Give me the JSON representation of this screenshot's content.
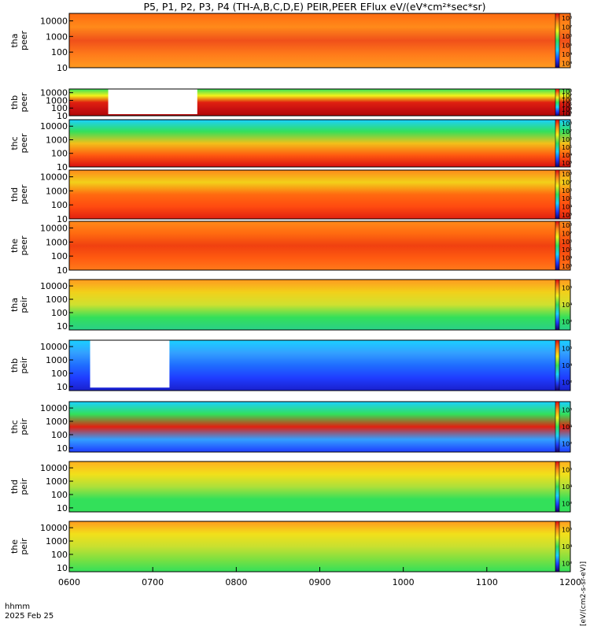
{
  "title": "P5, P1, P2, P3, P4 (TH-A,B,C,D,E) PEIR,PEER EFlux eV/(eV*cm²*sec*sr)",
  "colorbar_units": "[eV/(cm2-s-sr-eV)]",
  "time_label": "hhmm",
  "date_label": "2025 Feb 25",
  "x_ticks": [
    "0600",
    "0700",
    "0800",
    "0900",
    "1000",
    "1100",
    "1200"
  ],
  "chart_data": [
    {
      "type": "heatmap",
      "probe": "tha",
      "species": "peer",
      "ylabel": [
        "tha",
        "peer"
      ],
      "yticks": [
        "10",
        "100",
        "1000",
        "10000"
      ],
      "cbar_ticks": [
        "10³",
        "10⁴",
        "10⁵",
        "10⁶",
        "10⁷",
        "10⁸"
      ],
      "xlim": [
        "0600",
        "1200"
      ],
      "ylim": [
        10,
        30000
      ],
      "yscale": "log",
      "cscale": "log"
    },
    {
      "type": "heatmap",
      "probe": "thb",
      "species": "peer",
      "ylabel": [
        "thb",
        "peer"
      ],
      "yticks": [
        "10",
        "100",
        "1000",
        "10000"
      ],
      "cbar_ticks": [
        "10³",
        "10⁴",
        "10⁵",
        "10⁶",
        "10⁷",
        "10⁸"
      ],
      "xlim": [
        "0600",
        "1200"
      ],
      "ylim": [
        10,
        30000
      ],
      "yscale": "log",
      "cscale": "log",
      "data_gap": [
        "0628",
        "0732"
      ]
    },
    {
      "type": "heatmap",
      "probe": "thc",
      "species": "peer",
      "ylabel": [
        "thc",
        "peer"
      ],
      "yticks": [
        "10",
        "100",
        "1000",
        "10000"
      ],
      "cbar_ticks": [
        "10³",
        "10⁴",
        "10⁵",
        "10⁶",
        "10⁷",
        "10⁸"
      ],
      "xlim": [
        "0600",
        "1200"
      ],
      "ylim": [
        10,
        30000
      ],
      "yscale": "log",
      "cscale": "log"
    },
    {
      "type": "heatmap",
      "probe": "thd",
      "species": "peer",
      "ylabel": [
        "thd",
        "peer"
      ],
      "yticks": [
        "10",
        "100",
        "1000",
        "10000"
      ],
      "cbar_ticks": [
        "10³",
        "10⁴",
        "10⁵",
        "10⁶",
        "10⁷",
        "10⁸"
      ],
      "xlim": [
        "0600",
        "1200"
      ],
      "ylim": [
        10,
        30000
      ],
      "yscale": "log",
      "cscale": "log"
    },
    {
      "type": "heatmap",
      "probe": "the",
      "species": "peer",
      "ylabel": [
        "the",
        "peer"
      ],
      "yticks": [
        "10",
        "100",
        "1000",
        "10000"
      ],
      "cbar_ticks": [
        "10³",
        "10⁴",
        "10⁵",
        "10⁶",
        "10⁷",
        "10⁸"
      ],
      "xlim": [
        "0600",
        "1200"
      ],
      "ylim": [
        10,
        30000
      ],
      "yscale": "log",
      "cscale": "log"
    },
    {
      "type": "heatmap",
      "probe": "tha",
      "species": "peir",
      "ylabel": [
        "tha",
        "peir"
      ],
      "yticks": [
        "10",
        "100",
        "1000",
        "10000"
      ],
      "cbar_ticks": [
        "10²",
        "10⁴",
        "10⁶"
      ],
      "xlim": [
        "0600",
        "1200"
      ],
      "ylim": [
        5,
        30000
      ],
      "yscale": "log",
      "cscale": "log"
    },
    {
      "type": "heatmap",
      "probe": "thb",
      "species": "peir",
      "ylabel": [
        "thb",
        "peir"
      ],
      "yticks": [
        "10",
        "100",
        "1000",
        "10000"
      ],
      "cbar_ticks": [
        "10²",
        "10⁴",
        "10⁶"
      ],
      "xlim": [
        "0600",
        "1200"
      ],
      "ylim": [
        5,
        30000
      ],
      "yscale": "log",
      "cscale": "log",
      "data_gap": [
        "0615",
        "0712"
      ]
    },
    {
      "type": "heatmap",
      "probe": "thc",
      "species": "peir",
      "ylabel": [
        "thc",
        "peir"
      ],
      "yticks": [
        "10",
        "100",
        "1000",
        "10000"
      ],
      "cbar_ticks": [
        "10²",
        "10⁴",
        "10⁶"
      ],
      "xlim": [
        "0600",
        "1200"
      ],
      "ylim": [
        5,
        30000
      ],
      "yscale": "log",
      "cscale": "log"
    },
    {
      "type": "heatmap",
      "probe": "thd",
      "species": "peir",
      "ylabel": [
        "thd",
        "peir"
      ],
      "yticks": [
        "10",
        "100",
        "1000",
        "10000"
      ],
      "cbar_ticks": [
        "10²",
        "10⁴",
        "10⁶"
      ],
      "xlim": [
        "0600",
        "1200"
      ],
      "ylim": [
        5,
        30000
      ],
      "yscale": "log",
      "cscale": "log"
    },
    {
      "type": "heatmap",
      "probe": "the",
      "species": "peir",
      "ylabel": [
        "the",
        "peir"
      ],
      "yticks": [
        "10",
        "100",
        "1000",
        "10000"
      ],
      "cbar_ticks": [
        "10²",
        "10⁴",
        "10⁶"
      ],
      "xlim": [
        "0600",
        "1200"
      ],
      "ylim": [
        5,
        30000
      ],
      "yscale": "log",
      "cscale": "log"
    }
  ]
}
